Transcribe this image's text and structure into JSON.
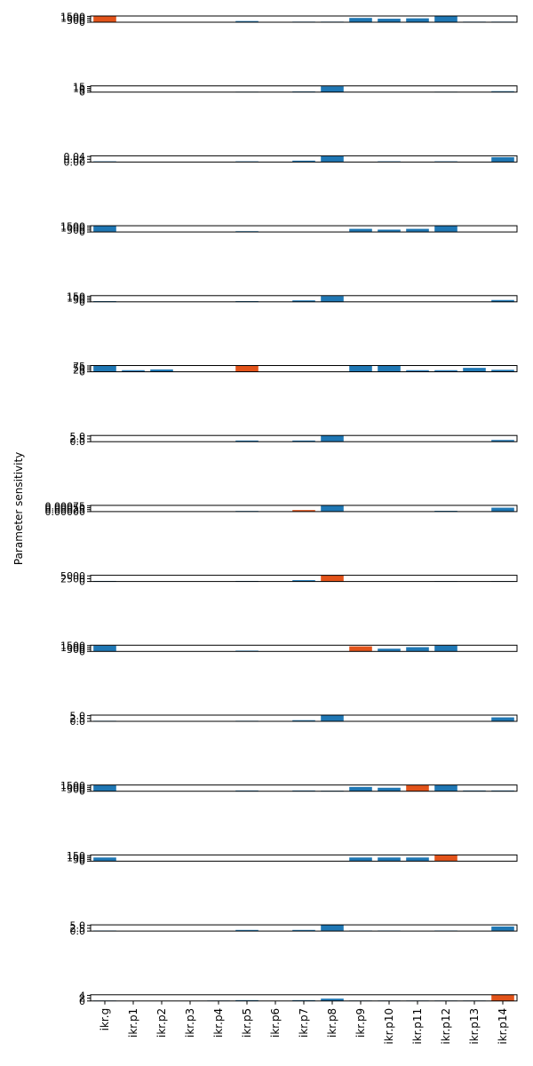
{
  "chart_data": [
    {
      "type": "bar",
      "yticks": [
        0,
        500,
        1000,
        1500
      ],
      "ylim": [
        0,
        1600
      ],
      "values": [
        1550,
        0,
        0,
        0,
        0,
        300,
        0,
        150,
        150,
        1100,
        900,
        1000,
        1500,
        150,
        150
      ],
      "colors": [
        "#e2531a",
        "#1f77b4",
        "#1f77b4",
        "#1f77b4",
        "#1f77b4",
        "#1f77b4",
        "#1f77b4",
        "#1f77b4",
        "#1f77b4",
        "#1f77b4",
        "#1f77b4",
        "#1f77b4",
        "#1f77b4",
        "#1f77b4",
        "#1f77b4"
      ]
    },
    {
      "type": "bar",
      "yticks": [
        0,
        5,
        10,
        15
      ],
      "ylim": [
        0,
        17
      ],
      "values": [
        0,
        0.3,
        0,
        0,
        0,
        1,
        0,
        2,
        16,
        0,
        0,
        0,
        1,
        0,
        2.5
      ],
      "colors": [
        "#1f77b4",
        "#e2531a",
        "#1f77b4",
        "#1f77b4",
        "#1f77b4",
        "#1f77b4",
        "#1f77b4",
        "#1f77b4",
        "#1f77b4",
        "#1f77b4",
        "#1f77b4",
        "#1f77b4",
        "#1f77b4",
        "#1f77b4",
        "#1f77b4"
      ]
    },
    {
      "type": "bar",
      "yticks": [
        {
          "value": 0,
          "label": "0.00"
        },
        {
          "value": 0.02,
          "label": "0.02"
        },
        {
          "value": 0.04,
          "label": "0.04"
        }
      ],
      "ylim": [
        0,
        0.045
      ],
      "values": [
        0.005,
        0,
        0.001,
        0,
        0,
        0.005,
        0,
        0.01,
        0.042,
        0,
        0.005,
        0,
        0.005,
        0,
        0.035
      ],
      "colors": [
        "#1f77b4",
        "#1f77b4",
        "#e2531a",
        "#1f77b4",
        "#1f77b4",
        "#1f77b4",
        "#1f77b4",
        "#1f77b4",
        "#1f77b4",
        "#1f77b4",
        "#1f77b4",
        "#1f77b4",
        "#1f77b4",
        "#1f77b4",
        "#1f77b4"
      ]
    },
    {
      "type": "bar",
      "yticks": [
        0,
        500,
        1000,
        1500
      ],
      "ylim": [
        0,
        1600
      ],
      "values": [
        1500,
        0,
        0,
        0,
        0,
        200,
        0,
        0,
        0,
        800,
        600,
        800,
        1500,
        0,
        0
      ],
      "colors": [
        "#1f77b4",
        "#1f77b4",
        "#1f77b4",
        "#e2531a",
        "#1f77b4",
        "#1f77b4",
        "#1f77b4",
        "#1f77b4",
        "#1f77b4",
        "#1f77b4",
        "#1f77b4",
        "#1f77b4",
        "#1f77b4",
        "#1f77b4",
        "#1f77b4"
      ]
    },
    {
      "type": "bar",
      "yticks": [
        0,
        50,
        100,
        150
      ],
      "ylim": [
        0,
        170
      ],
      "values": [
        20,
        0,
        0,
        0,
        3,
        20,
        0,
        40,
        160,
        0,
        0,
        0,
        0,
        0,
        50
      ],
      "colors": [
        "#1f77b4",
        "#1f77b4",
        "#1f77b4",
        "#1f77b4",
        "#e2531a",
        "#1f77b4",
        "#1f77b4",
        "#1f77b4",
        "#1f77b4",
        "#1f77b4",
        "#1f77b4",
        "#1f77b4",
        "#1f77b4",
        "#1f77b4",
        "#1f77b4"
      ]
    },
    {
      "type": "bar",
      "yticks": [
        0,
        25,
        50,
        75
      ],
      "ylim": [
        0,
        80
      ],
      "values": [
        75,
        20,
        30,
        0,
        0,
        75,
        0,
        0,
        0,
        75,
        75,
        20,
        20,
        50,
        25
      ],
      "colors": [
        "#1f77b4",
        "#1f77b4",
        "#1f77b4",
        "#1f77b4",
        "#1f77b4",
        "#e2531a",
        "#1f77b4",
        "#1f77b4",
        "#1f77b4",
        "#1f77b4",
        "#1f77b4",
        "#1f77b4",
        "#1f77b4",
        "#1f77b4",
        "#1f77b4"
      ]
    },
    {
      "type": "bar",
      "yticks": [
        {
          "value": 0,
          "label": "0.0"
        },
        2.5,
        {
          "value": 5,
          "label": "5.0"
        }
      ],
      "ylim": [
        0,
        5.5
      ],
      "values": [
        0,
        0,
        0,
        0,
        0,
        1,
        0.1,
        1,
        5.3,
        0,
        0,
        0,
        0,
        0,
        1.5
      ],
      "colors": [
        "#1f77b4",
        "#1f77b4",
        "#1f77b4",
        "#1f77b4",
        "#1f77b4",
        "#1f77b4",
        "#e2531a",
        "#1f77b4",
        "#1f77b4",
        "#1f77b4",
        "#1f77b4",
        "#1f77b4",
        "#1f77b4",
        "#1f77b4",
        "#1f77b4"
      ]
    },
    {
      "type": "bar",
      "ylabel": "Parameter sensitivity",
      "yticks": [
        {
          "value": 0,
          "label": "0.00000"
        },
        {
          "value": 0.00025,
          "label": "0.00025"
        },
        {
          "value": 0.0005,
          "label": "0.00050"
        },
        {
          "value": 0.00075,
          "label": "0.00075"
        }
      ],
      "ylim": [
        0,
        0.0008
      ],
      "values": [
        0,
        0,
        0,
        0,
        0,
        8e-05,
        0,
        0.0002,
        0.00078,
        0,
        0,
        0,
        0.0001,
        0,
        0.0005
      ],
      "colors": [
        "#1f77b4",
        "#1f77b4",
        "#1f77b4",
        "#1f77b4",
        "#1f77b4",
        "#1f77b4",
        "#1f77b4",
        "#e2531a",
        "#1f77b4",
        "#1f77b4",
        "#1f77b4",
        "#1f77b4",
        "#1f77b4",
        "#1f77b4",
        "#1f77b4"
      ]
    },
    {
      "type": "bar",
      "yticks": [
        0,
        2500,
        5000
      ],
      "ylim": [
        0,
        5500
      ],
      "values": [
        500,
        0,
        0,
        0,
        0,
        500,
        0,
        1200,
        5300,
        0,
        0,
        0,
        300,
        0,
        300
      ],
      "colors": [
        "#1f77b4",
        "#1f77b4",
        "#1f77b4",
        "#1f77b4",
        "#1f77b4",
        "#1f77b4",
        "#1f77b4",
        "#1f77b4",
        "#e2531a",
        "#1f77b4",
        "#1f77b4",
        "#1f77b4",
        "#1f77b4",
        "#1f77b4",
        "#1f77b4"
      ]
    },
    {
      "type": "bar",
      "yticks": [
        0,
        500,
        1000,
        1500
      ],
      "ylim": [
        0,
        1600
      ],
      "values": [
        1500,
        0,
        0,
        0,
        0,
        200,
        0,
        0,
        0,
        1300,
        700,
        1100,
        1500,
        0,
        0
      ],
      "colors": [
        "#1f77b4",
        "#1f77b4",
        "#1f77b4",
        "#1f77b4",
        "#1f77b4",
        "#1f77b4",
        "#1f77b4",
        "#1f77b4",
        "#1f77b4",
        "#e2531a",
        "#1f77b4",
        "#1f77b4",
        "#1f77b4",
        "#1f77b4",
        "#1f77b4"
      ]
    },
    {
      "type": "bar",
      "yticks": [
        {
          "value": 0,
          "label": "0.0"
        },
        2.5,
        {
          "value": 5,
          "label": "5.0"
        }
      ],
      "ylim": [
        0,
        5.5
      ],
      "values": [
        0.5,
        0,
        0,
        0,
        0,
        0.5,
        0,
        1,
        5.3,
        0,
        0.1,
        0,
        0,
        0,
        3.5
      ],
      "colors": [
        "#1f77b4",
        "#1f77b4",
        "#1f77b4",
        "#1f77b4",
        "#1f77b4",
        "#1f77b4",
        "#1f77b4",
        "#1f77b4",
        "#1f77b4",
        "#1f77b4",
        "#e2531a",
        "#1f77b4",
        "#1f77b4",
        "#1f77b4",
        "#1f77b4"
      ]
    },
    {
      "type": "bar",
      "yticks": [
        0,
        500,
        1000,
        1500
      ],
      "ylim": [
        0,
        1600
      ],
      "values": [
        1550,
        0,
        0,
        0,
        0,
        200,
        0,
        200,
        150,
        1100,
        900,
        1550,
        1550,
        200,
        200
      ],
      "colors": [
        "#1f77b4",
        "#1f77b4",
        "#1f77b4",
        "#1f77b4",
        "#1f77b4",
        "#1f77b4",
        "#1f77b4",
        "#1f77b4",
        "#1f77b4",
        "#1f77b4",
        "#1f77b4",
        "#e2531a",
        "#1f77b4",
        "#1f77b4",
        "#1f77b4"
      ]
    },
    {
      "type": "bar",
      "yticks": [
        0,
        50,
        100,
        150
      ],
      "ylim": [
        0,
        170
      ],
      "values": [
        100,
        0,
        0,
        0,
        0,
        0,
        0,
        0,
        0,
        100,
        100,
        100,
        160,
        0,
        0
      ],
      "colors": [
        "#1f77b4",
        "#1f77b4",
        "#1f77b4",
        "#1f77b4",
        "#1f77b4",
        "#1f77b4",
        "#1f77b4",
        "#1f77b4",
        "#1f77b4",
        "#1f77b4",
        "#1f77b4",
        "#1f77b4",
        "#e2531a",
        "#1f77b4",
        "#1f77b4"
      ]
    },
    {
      "type": "bar",
      "yticks": [
        {
          "value": 0,
          "label": "0.0"
        },
        2.5,
        {
          "value": 5,
          "label": "5.0"
        }
      ],
      "ylim": [
        0,
        5.5
      ],
      "values": [
        0.5,
        0,
        0,
        0,
        0,
        1,
        0,
        1,
        5.3,
        0.5,
        0.5,
        0,
        0.5,
        0,
        4
      ],
      "colors": [
        "#1f77b4",
        "#1f77b4",
        "#1f77b4",
        "#1f77b4",
        "#1f77b4",
        "#1f77b4",
        "#1f77b4",
        "#1f77b4",
        "#1f77b4",
        "#1f77b4",
        "#1f77b4",
        "#1f77b4",
        "#1f77b4",
        "#1f77b4",
        "#1f77b4"
      ]
    },
    {
      "type": "bar",
      "yticks": [
        0,
        2,
        4
      ],
      "ylim": [
        0,
        4.5
      ],
      "values": [
        0.3,
        0,
        0,
        0,
        0.3,
        0.6,
        0,
        0.6,
        1.7,
        0.3,
        0.3,
        0.3,
        0.3,
        0.3,
        4.4
      ],
      "colors": [
        "#1f77b4",
        "#1f77b4",
        "#1f77b4",
        "#1f77b4",
        "#1f77b4",
        "#1f77b4",
        "#1f77b4",
        "#1f77b4",
        "#1f77b4",
        "#1f77b4",
        "#1f77b4",
        "#1f77b4",
        "#1f77b4",
        "#1f77b4",
        "#e2531a"
      ],
      "categories": [
        "ikr.g",
        "ikr.p1",
        "ikr.p2",
        "ikr.p3",
        "ikr.p4",
        "ikr.p5",
        "ikr.p6",
        "ikr.p7",
        "ikr.p8",
        "ikr.p9",
        "ikr.p10",
        "ikr.p11",
        "ikr.p12",
        "ikr.p13",
        "ikr.p14"
      ]
    }
  ]
}
